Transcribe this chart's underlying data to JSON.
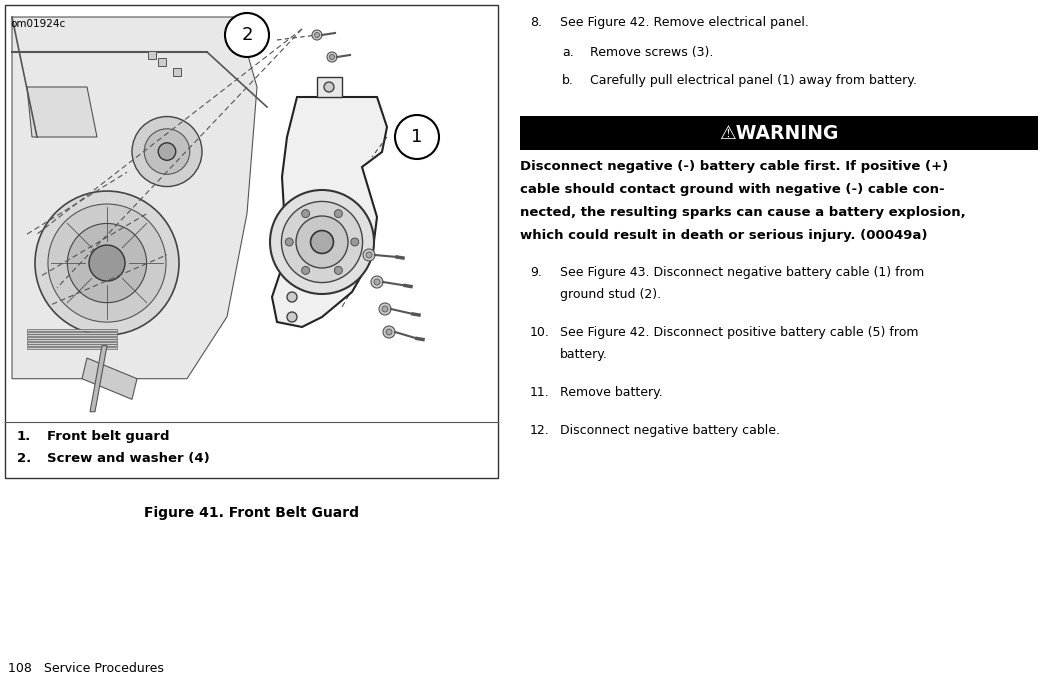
{
  "page_width": 10.51,
  "page_height": 6.85,
  "dpi": 100,
  "bg_color": "#ffffff",
  "text_color": "#000000",
  "panel_border_color": "#555555",
  "image_label": "om01924c",
  "figure_caption": "Figure 41. Front Belt Guard",
  "legend_items": [
    {
      "num": "1.",
      "text": "Front belt guard"
    },
    {
      "num": "2.",
      "text": "Screw and washer (4)"
    }
  ],
  "warning_bg": "#000000",
  "warning_text_color": "#ffffff",
  "warning_body_lines": [
    "Disconnect negative (-) battery cable first. If positive (+)",
    "cable should contact ground with negative (-) cable con-",
    "nected, the resulting sparks can cause a battery explosion,",
    "which could result in death or serious injury. (00049a)"
  ],
  "step8_text": "See Figure 42. Remove electrical panel.",
  "step8a_text": "Remove screws (3).",
  "step8b_text": "Carefully pull electrical panel (1) away from battery.",
  "step9_text": "See Figure 43. Disconnect negative battery cable (1) from\nground stud (2).",
  "step10_text": "See Figure 42. Disconnect positive battery cable (5) from\nbattery.",
  "step11_text": "Remove battery.",
  "step12_text": "Disconnect negative battery cable.",
  "footer_text": "108   Service Procedures",
  "body_fontsize": 9.0,
  "legend_fontsize": 9.5,
  "caption_fontsize": 10.0,
  "warning_header_fontsize": 13.5,
  "step_fontsize": 9.0
}
